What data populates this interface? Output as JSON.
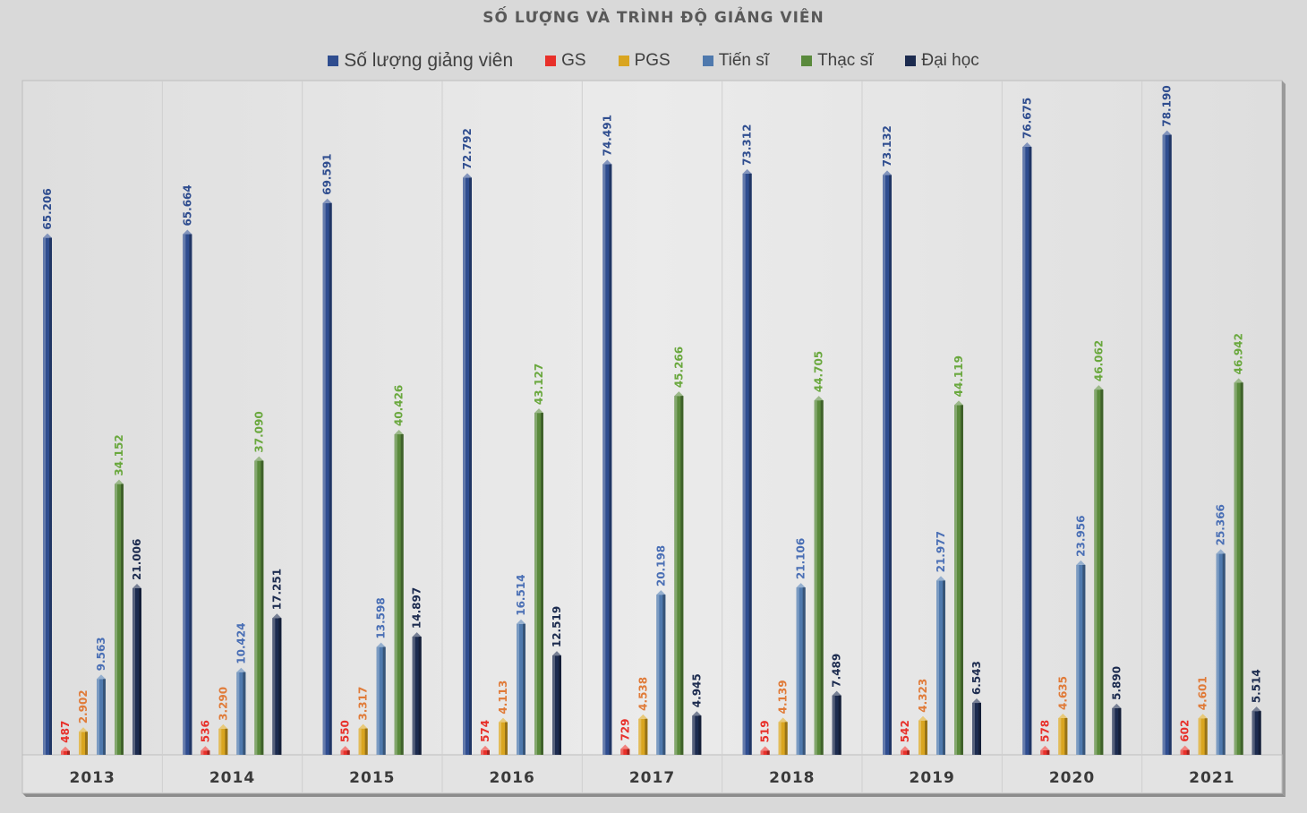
{
  "chart_data": {
    "type": "bar",
    "title": "SỐ LƯỢNG VÀ TRÌNH ĐỘ GIẢNG VIÊN",
    "categories": [
      "2013",
      "2014",
      "2015",
      "2016",
      "2017",
      "2018",
      "2019",
      "2020",
      "2021"
    ],
    "ylim": [
      0,
      80000
    ],
    "legend_position": "top",
    "grid": false,
    "series": [
      {
        "name": "Số lượng giảng viên",
        "color": "#2f4d8f",
        "label_color": "#2f4d8f",
        "values": [
          65206,
          65664,
          69591,
          72792,
          74491,
          73312,
          73132,
          76675,
          78190
        ],
        "labels": [
          "65.206",
          "65.664",
          "69.591",
          "72.792",
          "74.491",
          "73.312",
          "73.132",
          "76.675",
          "78.190"
        ]
      },
      {
        "name": "GS",
        "color": "#e8302a",
        "label_color": "#e8302a",
        "values": [
          487,
          536,
          550,
          574,
          729,
          519,
          542,
          578,
          602
        ],
        "labels": [
          "487",
          "536",
          "550",
          "574",
          "729",
          "519",
          "542",
          "578",
          "602"
        ]
      },
      {
        "name": "PGS",
        "color": "#d9a520",
        "label_color": "#e07b39",
        "values": [
          2902,
          3290,
          3317,
          4113,
          4538,
          4139,
          4323,
          4635,
          4601
        ],
        "labels": [
          "2.902",
          "3.290",
          "3.317",
          "4.113",
          "4.538",
          "4.139",
          "4.323",
          "4.635",
          "4.601"
        ]
      },
      {
        "name": "Tiến sĩ",
        "color": "#4f79ad",
        "label_color": "#4a6fb5",
        "values": [
          9563,
          10424,
          13598,
          16514,
          20198,
          21106,
          21977,
          23956,
          25366
        ],
        "labels": [
          "9.563",
          "10.424",
          "13.598",
          "16.514",
          "20.198",
          "21.106",
          "21.977",
          "23.956",
          "25.366"
        ]
      },
      {
        "name": "Thạc sĩ",
        "color": "#5a8a3c",
        "label_color": "#6aa83e",
        "values": [
          34152,
          37090,
          40426,
          43127,
          45266,
          44705,
          44119,
          46062,
          46942
        ],
        "labels": [
          "34.152",
          "37.090",
          "40.426",
          "43.127",
          "45.266",
          "44.705",
          "44.119",
          "46.062",
          "46.942"
        ]
      },
      {
        "name": "Đại học",
        "color": "#1c2b4f",
        "label_color": "#1c2b4f",
        "values": [
          21006,
          17251,
          14897,
          12519,
          4945,
          7489,
          6543,
          5890,
          5514
        ],
        "labels": [
          "21.006",
          "17.251",
          "14.897",
          "12.519",
          "4.945",
          "7.489",
          "6.543",
          "5.890",
          "5.514"
        ]
      }
    ]
  }
}
